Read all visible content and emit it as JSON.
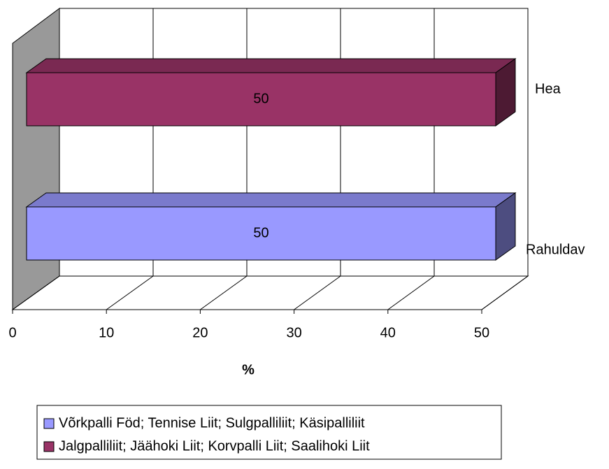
{
  "chart_data": {
    "type": "bar3d",
    "categories": [
      "Rahuldav",
      "Hea"
    ],
    "series": [
      {
        "name": "Võrkpalli Föd; Tennise Liit; Sulgpalliliit; Käsipalliliit",
        "color": "#9999ff",
        "values": [
          50,
          null
        ]
      },
      {
        "name": "Jalgpalliliit; Jäähoki Liit; Korvpalli Liit; Saalihoki Liit",
        "color": "#993366",
        "values": [
          null,
          50
        ]
      }
    ],
    "xlabel": "%",
    "xlim": [
      0,
      50
    ],
    "xticks": [
      0,
      10,
      20,
      30,
      40,
      50
    ],
    "grid": true
  }
}
